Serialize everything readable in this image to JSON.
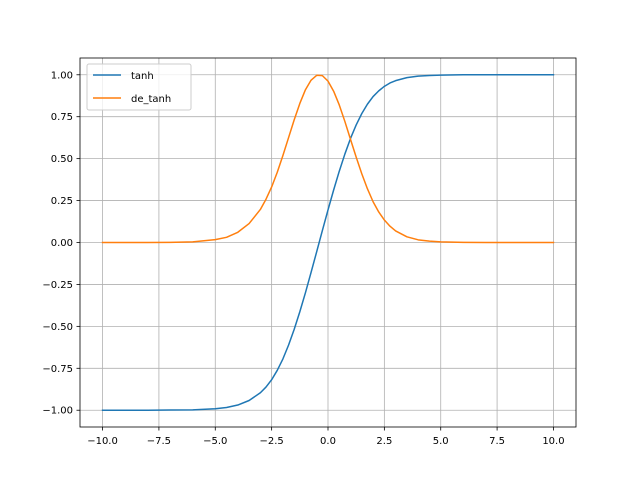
{
  "chart_data": {
    "type": "line",
    "title": "",
    "xlabel": "",
    "ylabel": "",
    "xlim": [
      -11.0,
      11.0
    ],
    "ylim": [
      -1.1,
      1.1
    ],
    "xticks": [
      -10.0,
      -7.5,
      -5.0,
      -2.5,
      0.0,
      2.5,
      5.0,
      7.5,
      10.0
    ],
    "xtick_labels": [
      "−10.0",
      "−7.5",
      "−5.0",
      "−2.5",
      "0.0",
      "2.5",
      "5.0",
      "7.5",
      "10.0"
    ],
    "yticks": [
      -1.0,
      -0.75,
      -0.5,
      -0.25,
      0.0,
      0.25,
      0.5,
      0.75,
      1.0
    ],
    "ytick_labels": [
      "−1.00",
      "−0.75",
      "−0.50",
      "−0.25",
      "0.00",
      "0.25",
      "0.50",
      "0.75",
      "1.00"
    ],
    "grid": true,
    "legend_position": "upper-left",
    "x": [
      -10.0,
      -9.0,
      -8.0,
      -7.0,
      -6.0,
      -5.0,
      -4.5,
      -4.0,
      -3.5,
      -3.0,
      -2.75,
      -2.5,
      -2.25,
      -2.0,
      -1.75,
      -1.5,
      -1.25,
      -1.0,
      -0.75,
      -0.5,
      -0.25,
      0.0,
      0.25,
      0.5,
      0.75,
      1.0,
      1.25,
      1.5,
      1.75,
      2.0,
      2.25,
      2.5,
      2.75,
      3.0,
      3.5,
      4.0,
      4.5,
      5.0,
      6.0,
      7.0,
      8.0,
      9.0,
      10.0
    ],
    "series": [
      {
        "name": "tanh",
        "color": "#1f77b4",
        "values": [
          -1.0,
          -1.0,
          -1.0,
          -0.999,
          -0.998,
          -0.991,
          -0.984,
          -0.969,
          -0.942,
          -0.896,
          -0.862,
          -0.818,
          -0.762,
          -0.694,
          -0.612,
          -0.518,
          -0.413,
          -0.299,
          -0.178,
          -0.054,
          0.071,
          0.194,
          0.313,
          0.425,
          0.528,
          0.621,
          0.701,
          0.769,
          0.825,
          0.87,
          0.904,
          0.931,
          0.951,
          0.965,
          0.983,
          0.992,
          0.996,
          0.998,
          1.0,
          1.0,
          1.0,
          1.0,
          1.0
        ]
      },
      {
        "name": "de_tanh",
        "color": "#ff7f0e",
        "values": [
          0.0,
          0.0,
          0.0,
          0.001,
          0.004,
          0.017,
          0.031,
          0.061,
          0.113,
          0.197,
          0.258,
          0.331,
          0.419,
          0.519,
          0.625,
          0.731,
          0.829,
          0.911,
          0.968,
          0.997,
          0.995,
          0.962,
          0.902,
          0.82,
          0.721,
          0.614,
          0.509,
          0.409,
          0.32,
          0.243,
          0.182,
          0.134,
          0.097,
          0.069,
          0.034,
          0.016,
          0.008,
          0.004,
          0.001,
          0.0,
          0.0,
          0.0,
          0.0
        ]
      }
    ]
  }
}
